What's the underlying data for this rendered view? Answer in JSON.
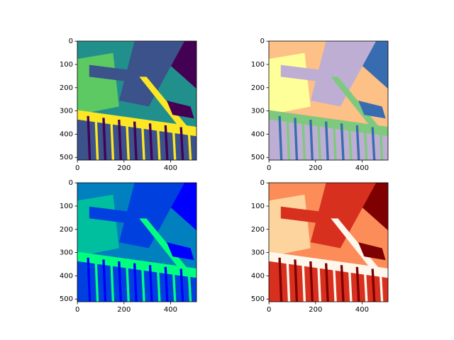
{
  "chart_data": [
    {
      "type": "image",
      "colors": [
        "#440154",
        "#3b528b",
        "#21908d",
        "#5dc963",
        "#fde725"
      ],
      "xlim": [
        -0.5,
        511.5
      ],
      "ylim": [
        511.5,
        -0.5
      ],
      "xticks": [
        0,
        200,
        400
      ],
      "yticks": [
        0,
        100,
        200,
        300,
        400,
        500
      ]
    },
    {
      "type": "image",
      "colors": [
        "#386cb0",
        "#beaed4",
        "#fdc086",
        "#ffff99",
        "#7fc97f",
        "#f0027f"
      ],
      "xlim": [
        -0.5,
        511.5
      ],
      "ylim": [
        511.5,
        -0.5
      ],
      "xticks": [
        0,
        200,
        400
      ],
      "yticks": [
        0,
        100,
        200,
        300,
        400,
        500
      ]
    },
    {
      "type": "image",
      "colors": [
        "#0000ff",
        "#0040df",
        "#0080bf",
        "#00bf9f",
        "#00ff80"
      ],
      "xlim": [
        -0.5,
        511.5
      ],
      "ylim": [
        511.5,
        -0.5
      ],
      "xticks": [
        0,
        200,
        400
      ],
      "yticks": [
        0,
        100,
        200,
        300,
        400,
        500
      ]
    },
    {
      "type": "image",
      "colors": [
        "#7f0000",
        "#d7301f",
        "#fc8d59",
        "#fdd49e",
        "#fff7ec"
      ],
      "xlim": [
        -0.5,
        511.5
      ],
      "ylim": [
        511.5,
        -0.5
      ],
      "xticks": [
        0,
        200,
        400
      ],
      "yticks": [
        0,
        100,
        200,
        300,
        400,
        500
      ]
    }
  ]
}
